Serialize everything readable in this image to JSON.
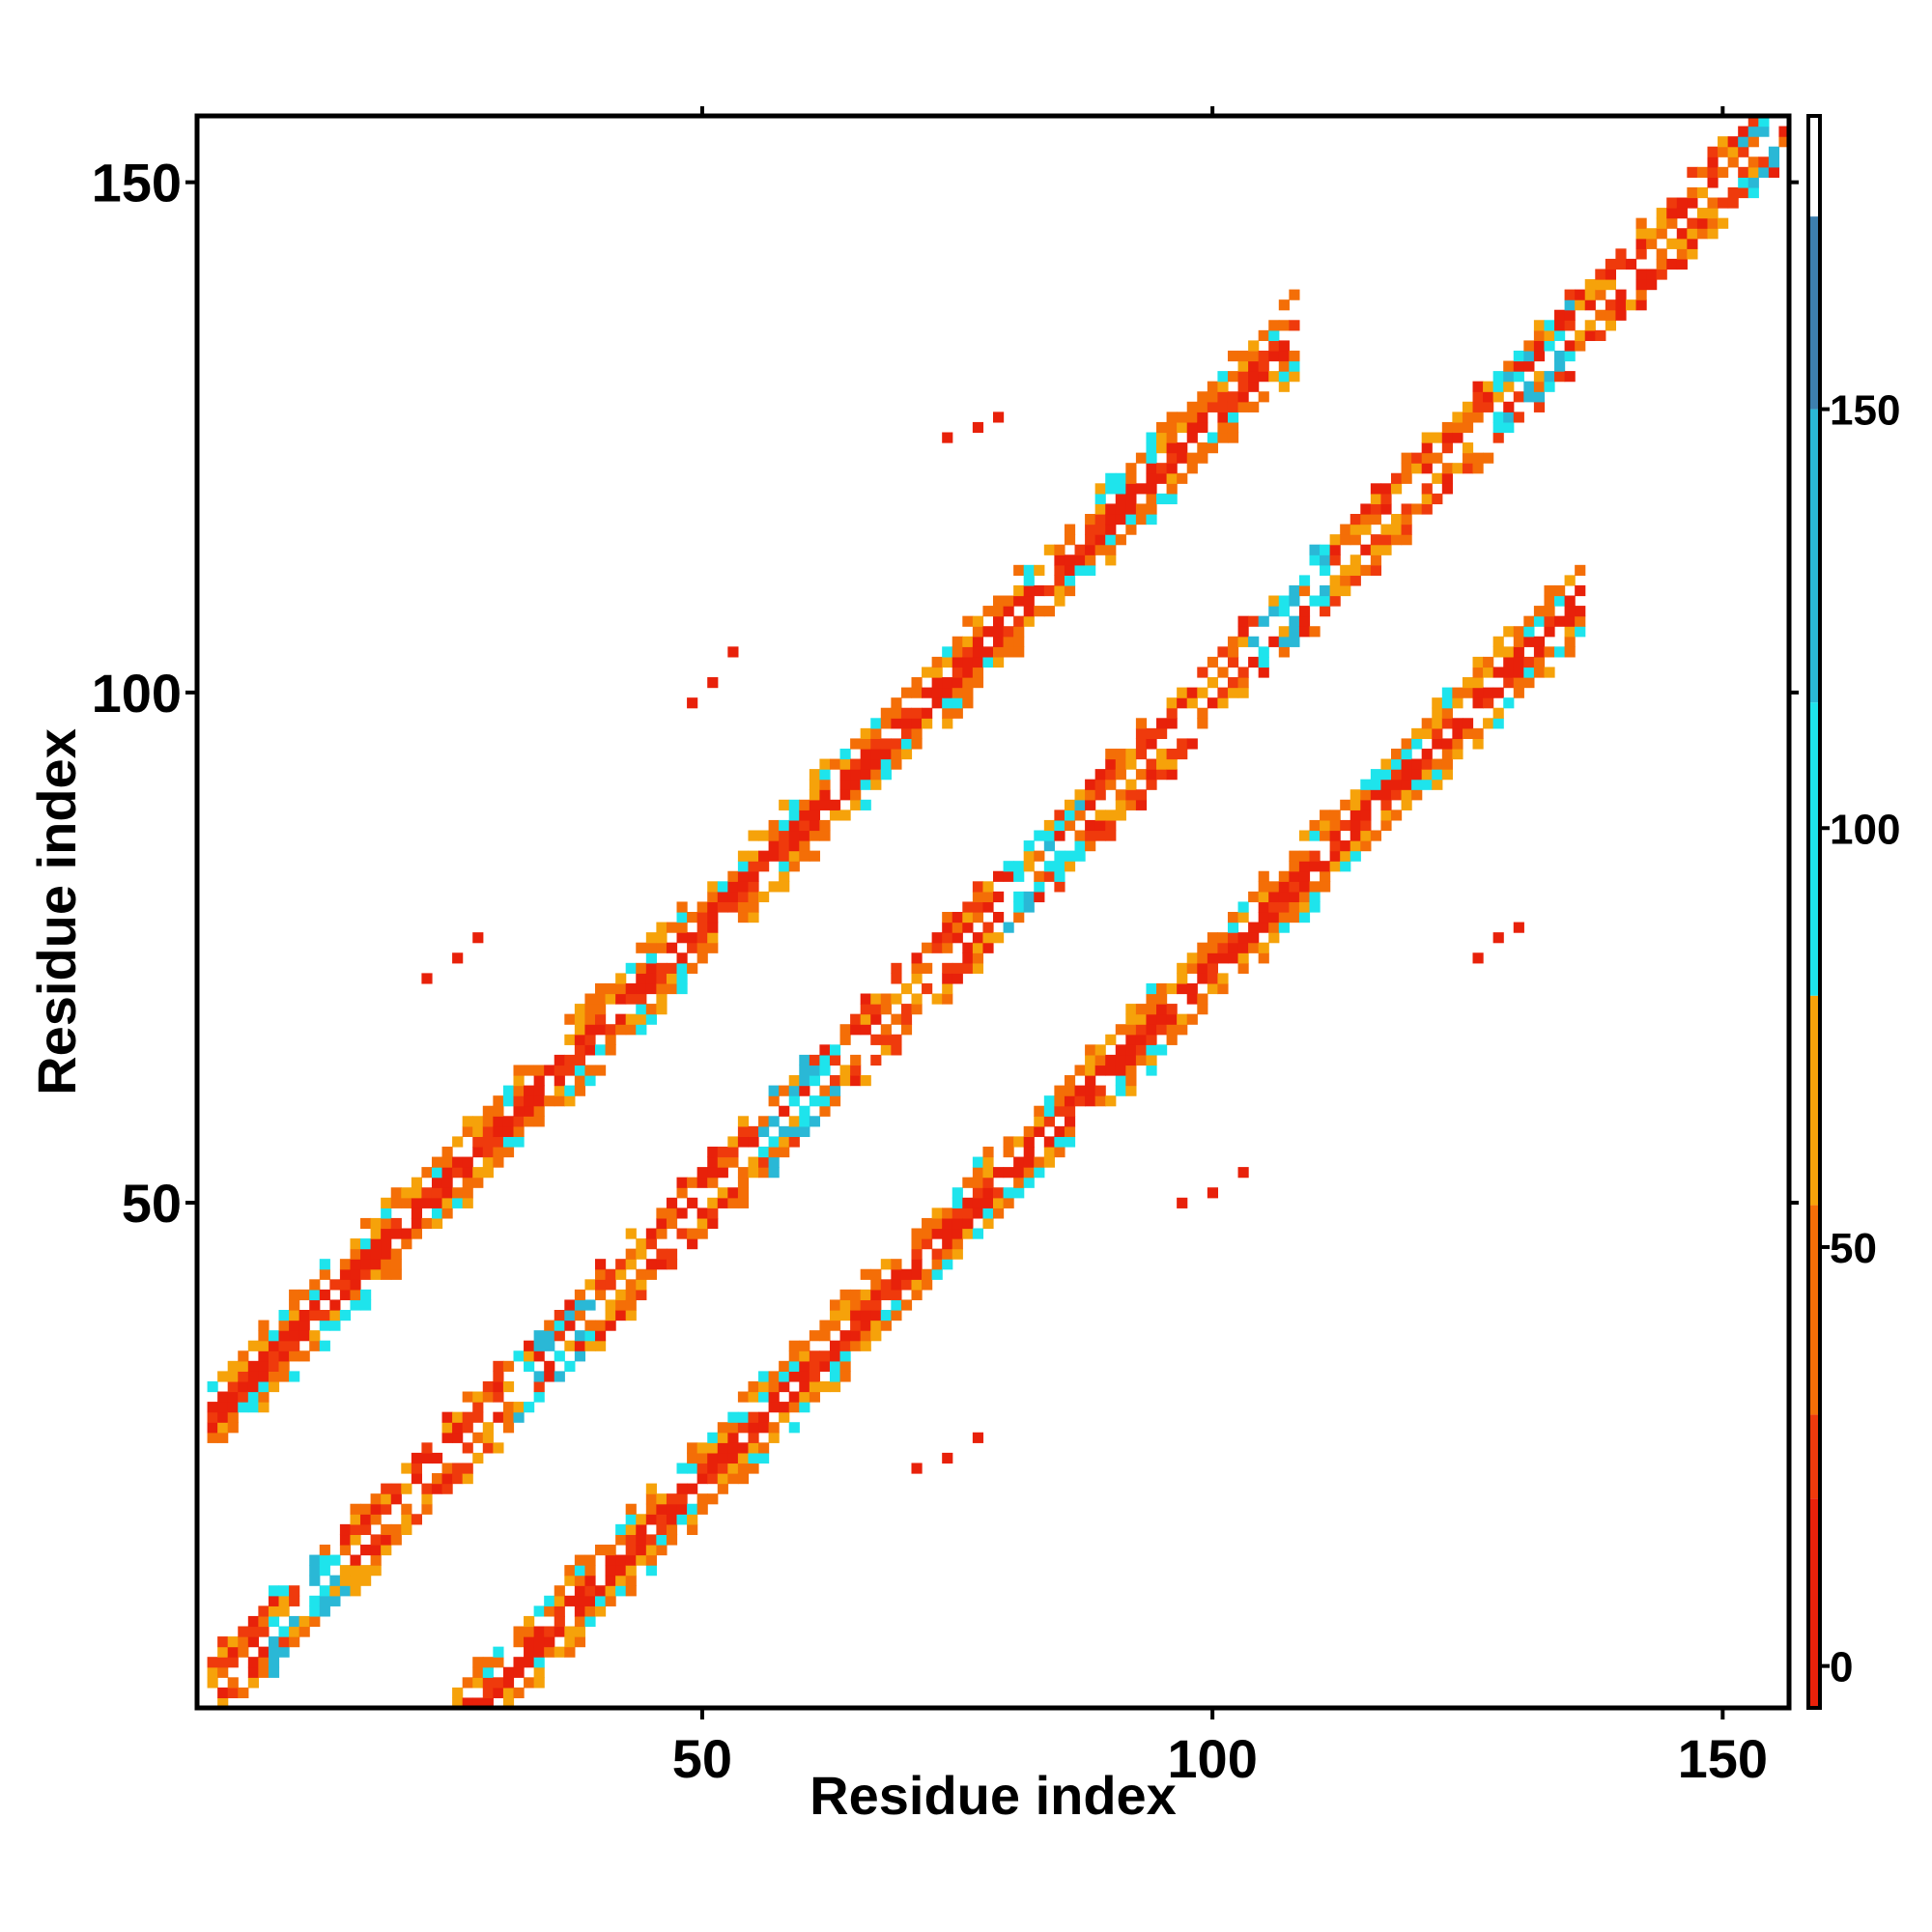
{
  "chart_data": {
    "type": "heatmap",
    "title": "",
    "xlabel": "Residue index",
    "ylabel": "Residue index",
    "xlim": [
      1,
      156
    ],
    "ylim": [
      1,
      156
    ],
    "x_ticks": [
      50,
      100,
      150
    ],
    "y_ticks": [
      50,
      100,
      150
    ],
    "colorbar": {
      "range": [
        -5,
        185
      ],
      "ticks": [
        0,
        50,
        100,
        150
      ],
      "segments": [
        {
          "from": -5,
          "to": 20,
          "color": "#e8210a"
        },
        {
          "from": 20,
          "to": 30,
          "color": "#ef3a0c"
        },
        {
          "from": 30,
          "to": 55,
          "color": "#f46e07"
        },
        {
          "from": 55,
          "to": 80,
          "color": "#f6a20a"
        },
        {
          "from": 80,
          "to": 115,
          "color": "#1ee4ec"
        },
        {
          "from": 115,
          "to": 150,
          "color": "#2ab8d6"
        },
        {
          "from": 150,
          "to": 173,
          "color": "#3d7fae"
        },
        {
          "from": 173,
          "to": 185,
          "color": "#ffffff"
        }
      ]
    },
    "grid": false,
    "legend": "colorbar-right",
    "bands": [
      {
        "name": "diagonal",
        "x_from": 2,
        "x_to": 156,
        "offset": 0,
        "half_width": 3
      },
      {
        "name": "upper",
        "x_from": 2,
        "x_to": 108,
        "offset": 27,
        "half_width": 3
      },
      {
        "name": "lower",
        "x_from": 26,
        "x_to": 136,
        "offset": -27,
        "half_width": 3
      }
    ],
    "scatter_contacts": [
      [
        74,
        125
      ],
      [
        77,
        126
      ],
      [
        79,
        127
      ],
      [
        49,
        99
      ],
      [
        51,
        101
      ],
      [
        53,
        104
      ],
      [
        23,
        72
      ],
      [
        26,
        74
      ],
      [
        28,
        76
      ],
      [
        97,
        50
      ],
      [
        100,
        51
      ],
      [
        103,
        53
      ],
      [
        71,
        24
      ],
      [
        74,
        25
      ],
      [
        77,
        27
      ],
      [
        126,
        74
      ],
      [
        128,
        76
      ],
      [
        130,
        77
      ]
    ]
  }
}
